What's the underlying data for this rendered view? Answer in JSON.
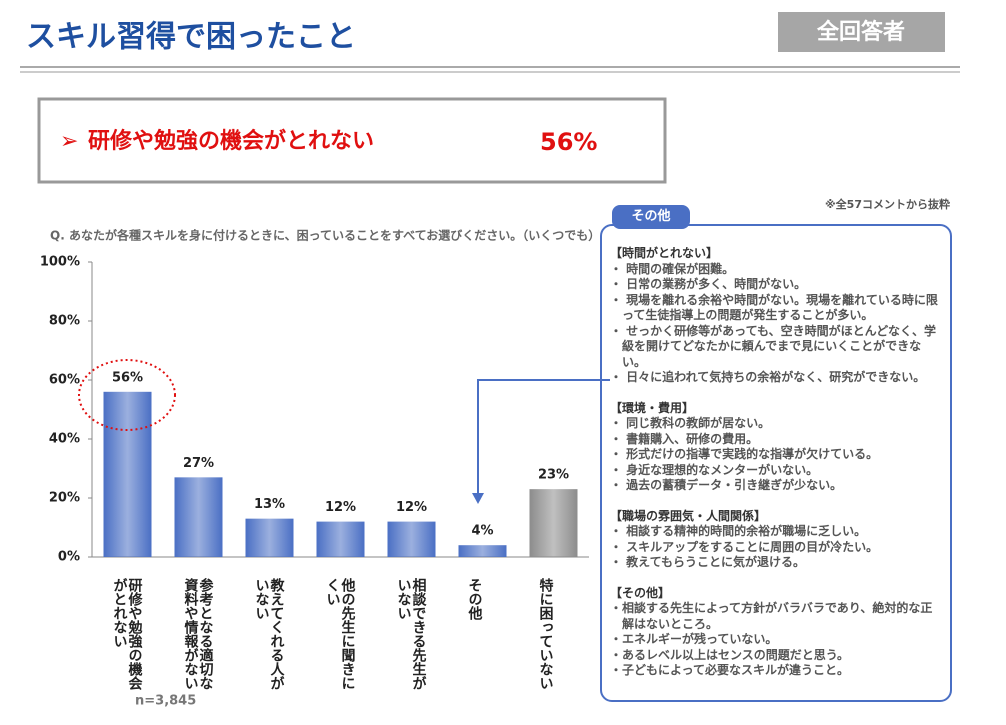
{
  "header": {
    "title": "スキル習得で困ったこと",
    "badge": "全回答者"
  },
  "highlight": {
    "marker": "➢",
    "text": "研修や勉強の機会がとれない",
    "value": "56%"
  },
  "chart_data": {
    "type": "bar",
    "question": "Q. あなたが各種スキルを身に付けるときに、困っていることをすべてお選びください。（いくつでも）",
    "categories": [
      "研修や勉強の機会がとれない",
      "参考となる適切な資料や情報がない",
      "教えてくれる人がいない",
      "他の先生に聞きにくい",
      "相談できる先生がいない",
      "その他",
      "特に困っていない"
    ],
    "values": [
      56,
      27,
      13,
      12,
      12,
      4,
      23
    ],
    "value_labels": [
      "56%",
      "27%",
      "13%",
      "12%",
      "12%",
      "4%",
      "23%"
    ],
    "colors": [
      "#4a6fc4",
      "#4a6fc4",
      "#4a6fc4",
      "#4a6fc4",
      "#4a6fc4",
      "#4a6fc4",
      "#8c8c8c"
    ],
    "ylim": [
      0,
      100
    ],
    "yticks": [
      {
        "value": 0,
        "label": "0%"
      },
      {
        "value": 20,
        "label": "20%"
      },
      {
        "value": 40,
        "label": "40%"
      },
      {
        "value": 60,
        "label": "60%"
      },
      {
        "value": 80,
        "label": "80%"
      },
      {
        "value": 100,
        "label": "100%"
      }
    ],
    "sample": "n=3,845"
  },
  "comments": {
    "tab": "その他",
    "note": "※全57コメントから抜粋",
    "sections": [
      {
        "heading": "【時間がとれない】",
        "items": [
          "・ 時間の確保が困難。",
          "・ 日常の業務が多く、時間がない。",
          "・ 現場を離れる余裕や時間がない。現場を離れている時に限って生徒指導上の問題が発生することが多い。",
          "・ せっかく研修等があっても、空き時間がほとんどなく、学級を開けてどなたかに頼んでまで見にいくことができない。",
          "・ 日々に追われて気持ちの余裕がなく、研究ができない。"
        ]
      },
      {
        "heading": "【環境・費用】",
        "items": [
          "・ 同じ教科の教師が居ない。",
          "・ 書籍購入、研修の費用。",
          "・ 形式だけの指導で実践的な指導が欠けている。",
          "・ 身近な理想的なメンターがいない。",
          "・ 過去の蓄積データ・引き継ぎが少ない。"
        ]
      },
      {
        "heading": "【職場の雰囲気・人間関係】",
        "items": [
          "・ 相談する精神的時間的余裕が職場に乏しい。",
          "・ スキルアップをすることに周囲の目が冷たい。",
          "・ 教えてもらうことに気が退ける。"
        ]
      },
      {
        "heading": "【その他】",
        "items": [
          "・相談する先生によって方針がバラバラであり、絶対的な正解はないところ。",
          "・エネルギーが残っていない。",
          "・あるレベル以上はセンスの問題だと思う。",
          "・子どもによって必要なスキルが違うこと。"
        ]
      }
    ]
  }
}
